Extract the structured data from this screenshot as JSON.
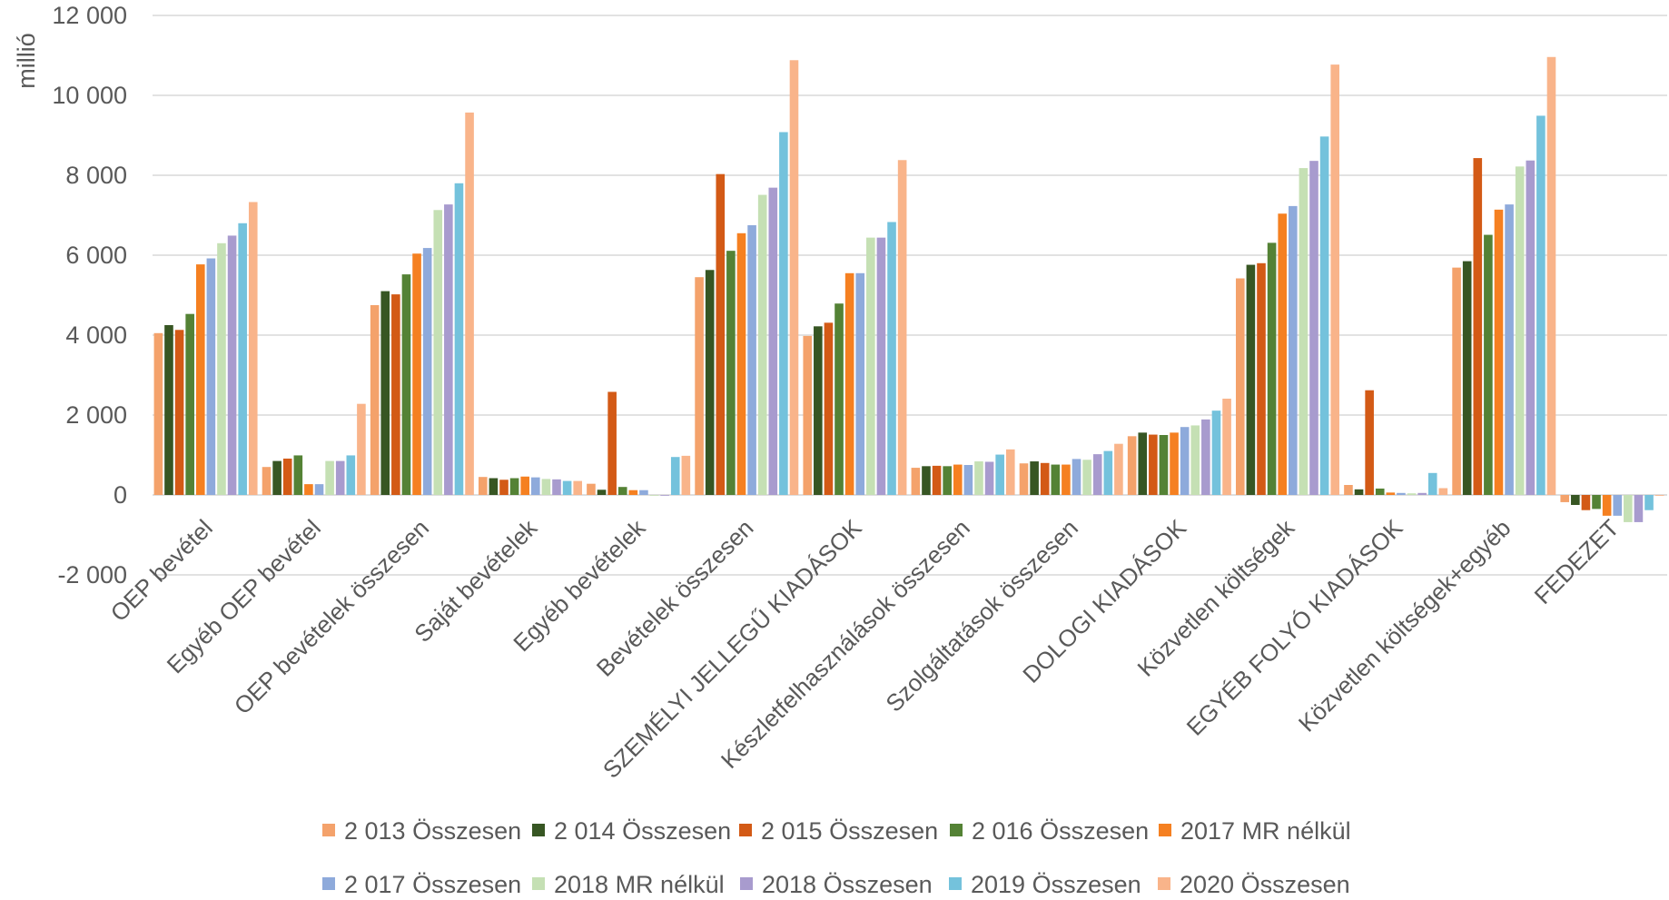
{
  "chart_data": {
    "type": "bar",
    "ylabel": "millió",
    "ylim": [
      -2000,
      12000
    ],
    "yticks": [
      -2000,
      0,
      2000,
      4000,
      6000,
      8000,
      10000,
      12000
    ],
    "ytick_labels": [
      "-2 000",
      "0",
      "2 000",
      "4 000",
      "6 000",
      "8 000",
      "10 000",
      "12 000"
    ],
    "grid": true,
    "legend_position": "bottom",
    "categories": [
      "OEP bevétel",
      "Egyéb OEP bevétel",
      "OEP bevételek összesen",
      "Saját bevételek",
      "Egyéb bevételek",
      "Bevételek összesen",
      "SZEMÉLYI JELLEGŰ KIADÁSOK",
      "Készletfelhasználások összesen",
      "Szolgáltatások összesen",
      "DOLOGI KIADÁSOK",
      "Közvetlen költségek",
      "EGYÉB FOLYÓ KIADÁSOK",
      "Közvetlen költségek+egyéb",
      "FEDEZET"
    ],
    "series": [
      {
        "name": "2 013 Összesen",
        "color": "#f4a26b",
        "values": [
          4050,
          700,
          4750,
          450,
          280,
          5450,
          3980,
          680,
          790,
          1470,
          5420,
          250,
          5690,
          -180
        ]
      },
      {
        "name": "2 014 Összesen",
        "color": "#375623",
        "values": [
          4250,
          850,
          5100,
          420,
          130,
          5630,
          4220,
          720,
          840,
          1560,
          5760,
          140,
          5850,
          -250
        ]
      },
      {
        "name": "2 015 Összesen",
        "color": "#d35a16",
        "values": [
          4130,
          910,
          5020,
          380,
          2580,
          8030,
          4310,
          730,
          800,
          1510,
          5800,
          2620,
          8430,
          -380
        ]
      },
      {
        "name": "2 016 Összesen",
        "color": "#548235",
        "values": [
          4530,
          990,
          5520,
          420,
          200,
          6110,
          4790,
          720,
          760,
          1500,
          6310,
          160,
          6510,
          -350
        ]
      },
      {
        "name": "2017 MR nélkül",
        "color": "#f58021",
        "values": [
          5770,
          270,
          6040,
          460,
          120,
          6550,
          5550,
          760,
          760,
          1560,
          7040,
          60,
          7140,
          -520
        ]
      },
      {
        "name": "2 017 Összesen",
        "color": "#8eaadb",
        "values": [
          5920,
          270,
          6180,
          440,
          120,
          6750,
          5550,
          750,
          900,
          1700,
          7230,
          50,
          7270,
          -520
        ]
      },
      {
        "name": "2018 MR nélkül",
        "color": "#c5e0b4",
        "values": [
          6300,
          850,
          7130,
          400,
          0,
          7510,
          6440,
          840,
          880,
          1740,
          8180,
          40,
          8220,
          -680
        ]
      },
      {
        "name": "2018 Összesen",
        "color": "#a89bce",
        "values": [
          6490,
          850,
          7270,
          390,
          0,
          7690,
          6440,
          830,
          1020,
          1890,
          8360,
          50,
          8370,
          -680
        ]
      },
      {
        "name": "2019 Összesen",
        "color": "#74c2dc",
        "values": [
          6800,
          990,
          7800,
          350,
          950,
          9080,
          6830,
          1010,
          1100,
          2110,
          8970,
          550,
          9490,
          -380
        ]
      },
      {
        "name": "2020 Összesen",
        "color": "#f9b48a",
        "values": [
          7330,
          2280,
          9570,
          350,
          980,
          10880,
          8380,
          1140,
          1280,
          2410,
          10770,
          170,
          10960,
          -20
        ]
      }
    ]
  }
}
